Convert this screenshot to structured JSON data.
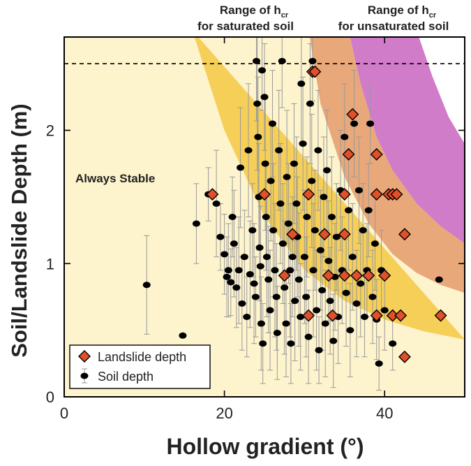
{
  "chart_data": {
    "type": "scatter",
    "xlabel": "Hollow gradient (°)",
    "ylabel": "Soil/Landslide Depth (m)",
    "xlim": [
      0,
      50
    ],
    "ylim": [
      0,
      2.7
    ],
    "xticks": [
      0,
      20,
      40
    ],
    "yticks": [
      0,
      1,
      2
    ],
    "reference_line": {
      "y": 2.5,
      "style": "dashed"
    },
    "band_titles": {
      "saturated": {
        "line1": "Range of h",
        "sub": "cr",
        "line2": "for saturated soil"
      },
      "unsaturated": {
        "line1": "Range of h",
        "sub": "cr",
        "line2": "for unsaturated soil"
      }
    },
    "region_label": "Always Stable",
    "regions": {
      "always_stable": {
        "color": "#fdf3cc"
      },
      "saturated_band": {
        "color": "#f5cf57",
        "edge_lower_y": [
          [
            16,
            2.75
          ],
          [
            20,
            2.0
          ],
          [
            25,
            1.35
          ],
          [
            30,
            0.95
          ],
          [
            35,
            0.72
          ],
          [
            40,
            0.58
          ],
          [
            45,
            0.49
          ],
          [
            50,
            0.43
          ]
        ],
        "edge_upper_y": [
          [
            30.5,
            2.75
          ],
          [
            32,
            2.2
          ],
          [
            35,
            1.65
          ],
          [
            38,
            1.3
          ],
          [
            41,
            1.07
          ],
          [
            44,
            0.93
          ],
          [
            47,
            0.84
          ],
          [
            50,
            0.78
          ]
        ]
      },
      "orange_band": {
        "color": "#e8a87a"
      },
      "unsaturated_band": {
        "color": "#d07cc8",
        "edge_lower_y": [
          [
            35.5,
            2.75
          ],
          [
            37,
            2.35
          ],
          [
            39,
            1.95
          ],
          [
            41,
            1.7
          ],
          [
            44,
            1.45
          ],
          [
            47,
            1.28
          ],
          [
            50,
            1.15
          ]
        ],
        "edge_upper_y": [
          [
            44,
            2.75
          ],
          [
            46,
            2.4
          ],
          [
            48,
            2.1
          ],
          [
            50,
            1.9
          ]
        ]
      }
    },
    "legend": {
      "position": "bottom-left",
      "items": [
        {
          "label": "Landslide depth",
          "marker": "diamond",
          "color": "#e0502a"
        },
        {
          "label": "Soil depth",
          "marker": "circle-errorbar",
          "color": "#000000"
        }
      ]
    },
    "series": [
      {
        "name": "Landslide depth",
        "points": [
          [
            18.5,
            1.52
          ],
          [
            25.0,
            1.52
          ],
          [
            31.0,
            2.44
          ],
          [
            31.3,
            2.44
          ],
          [
            30.5,
            1.52
          ],
          [
            35.0,
            1.52
          ],
          [
            36.0,
            2.12
          ],
          [
            35.5,
            1.82
          ],
          [
            39.0,
            1.82
          ],
          [
            39.0,
            1.52
          ],
          [
            40.5,
            1.52
          ],
          [
            41.0,
            1.52
          ],
          [
            41.5,
            1.52
          ],
          [
            42.5,
            1.22
          ],
          [
            35.0,
            1.22
          ],
          [
            32.5,
            1.22
          ],
          [
            28.5,
            1.22
          ],
          [
            27.5,
            0.91
          ],
          [
            33.0,
            0.91
          ],
          [
            35.0,
            0.91
          ],
          [
            36.5,
            0.91
          ],
          [
            38.0,
            0.91
          ],
          [
            40.0,
            0.91
          ],
          [
            30.5,
            0.61
          ],
          [
            33.5,
            0.61
          ],
          [
            39.0,
            0.61
          ],
          [
            41.0,
            0.61
          ],
          [
            42.0,
            0.61
          ],
          [
            47.0,
            0.61
          ],
          [
            42.5,
            0.3
          ]
        ]
      },
      {
        "name": "Soil depth",
        "points": [
          [
            10.3,
            0.84,
            0.37
          ],
          [
            14.8,
            0.46,
            0.0
          ],
          [
            16.5,
            1.3,
            0.3
          ],
          [
            18.0,
            1.52,
            0.2
          ],
          [
            19.0,
            1.45,
            0.4
          ],
          [
            19.5,
            1.2,
            0.25
          ],
          [
            20.0,
            1.07,
            0.3
          ],
          [
            20.3,
            0.9,
            0.3
          ],
          [
            20.5,
            0.95,
            0.35
          ],
          [
            20.8,
            0.86,
            0.25
          ],
          [
            21.0,
            1.35,
            0.3
          ],
          [
            21.2,
            1.15,
            0.4
          ],
          [
            21.5,
            0.82,
            0.3
          ],
          [
            21.8,
            0.95,
            0.4
          ],
          [
            22.0,
            1.72,
            0.45
          ],
          [
            22.2,
            0.7,
            0.35
          ],
          [
            22.5,
            1.05,
            0.35
          ],
          [
            22.8,
            0.6,
            0.3
          ],
          [
            23.0,
            1.85,
            0.5
          ],
          [
            23.2,
            0.92,
            0.4
          ],
          [
            23.5,
            1.25,
            0.35
          ],
          [
            23.7,
            0.85,
            0.45
          ],
          [
            23.9,
            0.75,
            0.3
          ],
          [
            24.0,
            2.52,
            0.45
          ],
          [
            24.1,
            2.2,
            0.5
          ],
          [
            24.2,
            1.95,
            0.45
          ],
          [
            24.3,
            1.5,
            0.4
          ],
          [
            24.4,
            1.12,
            0.4
          ],
          [
            24.5,
            0.98,
            0.45
          ],
          [
            24.6,
            0.55,
            0.35
          ],
          [
            24.7,
            2.45,
            0.3
          ],
          [
            24.8,
            0.4,
            0.3
          ],
          [
            25.0,
            2.25,
            0.4
          ],
          [
            25.1,
            1.75,
            0.5
          ],
          [
            25.2,
            1.35,
            0.4
          ],
          [
            25.3,
            1.05,
            0.45
          ],
          [
            25.5,
            0.88,
            0.4
          ],
          [
            25.7,
            0.65,
            0.45
          ],
          [
            25.8,
            1.62,
            0.45
          ],
          [
            26.0,
            2.05,
            0.4
          ],
          [
            26.1,
            1.25,
            0.5
          ],
          [
            26.3,
            0.95,
            0.5
          ],
          [
            26.5,
            0.75,
            0.4
          ],
          [
            26.6,
            0.48,
            0.35
          ],
          [
            26.8,
            1.85,
            0.45
          ],
          [
            27.0,
            1.45,
            0.45
          ],
          [
            27.2,
            2.52,
            0.35
          ],
          [
            27.3,
            1.15,
            0.45
          ],
          [
            27.5,
            0.82,
            0.5
          ],
          [
            27.7,
            0.55,
            0.4
          ],
          [
            27.8,
            1.65,
            0.5
          ],
          [
            28.0,
            1.3,
            0.45
          ],
          [
            28.2,
            0.95,
            0.5
          ],
          [
            28.3,
            0.4,
            0.3
          ],
          [
            28.5,
            1.05,
            0.45
          ],
          [
            28.7,
            1.75,
            0.45
          ],
          [
            28.8,
            0.72,
            0.45
          ],
          [
            29.0,
            1.45,
            0.5
          ],
          [
            29.1,
            1.2,
            0.45
          ],
          [
            29.3,
            0.88,
            0.5
          ],
          [
            29.5,
            0.6,
            0.4
          ],
          [
            29.6,
            2.35,
            0.45
          ],
          [
            29.8,
            1.9,
            0.5
          ],
          [
            30.0,
            1.05,
            0.5
          ],
          [
            30.2,
            0.75,
            0.45
          ],
          [
            30.3,
            1.35,
            0.45
          ],
          [
            30.5,
            0.45,
            0.35
          ],
          [
            30.7,
            2.2,
            0.45
          ],
          [
            30.9,
            1.62,
            0.5
          ],
          [
            31.0,
            2.52,
            0.3
          ],
          [
            31.1,
            0.95,
            0.5
          ],
          [
            31.3,
            1.25,
            0.45
          ],
          [
            31.5,
            0.65,
            0.45
          ],
          [
            31.7,
            1.85,
            0.45
          ],
          [
            31.8,
            0.35,
            0.25
          ],
          [
            32.0,
            1.1,
            0.45
          ],
          [
            32.2,
            0.8,
            0.45
          ],
          [
            32.4,
            1.5,
            0.45
          ],
          [
            32.6,
            0.55,
            0.4
          ],
          [
            32.8,
            1.7,
            0.45
          ],
          [
            33.0,
            1.02,
            0.45
          ],
          [
            33.2,
            0.72,
            0.4
          ],
          [
            33.4,
            1.35,
            0.45
          ],
          [
            33.6,
            0.42,
            0.35
          ],
          [
            33.8,
            0.9,
            0.4
          ],
          [
            34.0,
            1.2,
            0.4
          ],
          [
            34.2,
            0.6,
            0.35
          ],
          [
            34.5,
            1.55,
            0.45
          ],
          [
            34.7,
            0.95,
            0.4
          ],
          [
            35.0,
            1.95,
            0.4
          ],
          [
            35.2,
            0.78,
            0.4
          ],
          [
            35.5,
            1.4,
            0.45
          ],
          [
            35.7,
            0.5,
            0.35
          ],
          [
            36.0,
            1.05,
            0.4
          ],
          [
            36.2,
            2.05,
            0.4
          ],
          [
            36.5,
            0.7,
            0.4
          ],
          [
            36.8,
            1.55,
            0.4
          ],
          [
            37.0,
            0.85,
            0.4
          ],
          [
            37.3,
            1.25,
            0.35
          ],
          [
            37.5,
            0.6,
            0.3
          ],
          [
            37.8,
            0.95,
            0.35
          ],
          [
            38.0,
            1.4,
            0.35
          ],
          [
            38.2,
            2.05,
            0.3
          ],
          [
            38.5,
            0.75,
            0.35
          ],
          [
            38.8,
            1.15,
            0.35
          ],
          [
            39.0,
            0.58,
            0.3
          ],
          [
            39.3,
            0.25,
            0.2
          ],
          [
            39.6,
            0.95,
            0.3
          ],
          [
            40.0,
            0.65,
            0.3
          ],
          [
            41.0,
            0.4,
            0.2
          ],
          [
            46.8,
            0.88,
            0.0
          ]
        ]
      }
    ]
  }
}
